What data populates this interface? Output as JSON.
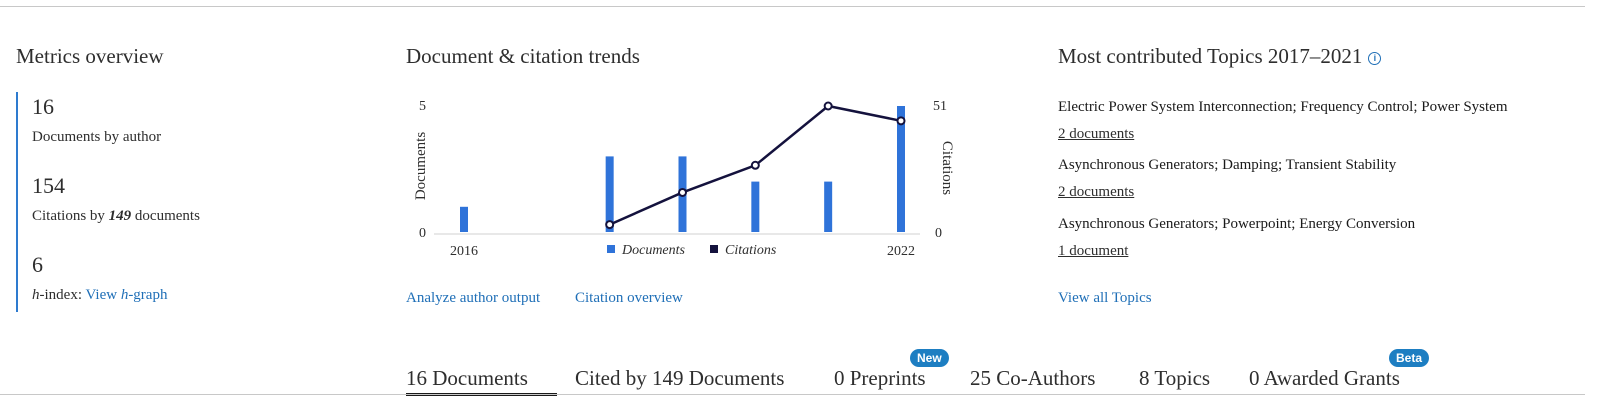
{
  "metrics": {
    "title": "Metrics overview",
    "documents": {
      "value": "16",
      "label": "Documents by author"
    },
    "citations": {
      "value": "154",
      "label_prefix": "Citations by ",
      "label_count": "149",
      "label_suffix": " documents"
    },
    "hindex": {
      "value": "6",
      "label_prefix": "h",
      "label_mid": "-index: ",
      "link_prefix": "View ",
      "link_italic": "h",
      "link_suffix": "-graph"
    }
  },
  "trends": {
    "title": "Document & citation trends",
    "analyze_link": "Analyze author output",
    "citation_link": "Citation overview"
  },
  "chart_data": {
    "type": "bar",
    "x": [
      2016,
      2017,
      2018,
      2019,
      2020,
      2021,
      2022
    ],
    "x_tick_labels": [
      "2016",
      "2022"
    ],
    "series": [
      {
        "name": "Documents",
        "type": "bar",
        "axis": "left",
        "values": [
          1,
          0,
          3,
          3,
          2,
          2,
          5
        ],
        "color": "#2f73d9"
      },
      {
        "name": "Citations",
        "type": "line",
        "axis": "right",
        "x": [
          2018,
          2019,
          2020,
          2021,
          2022
        ],
        "values": [
          3,
          16,
          27,
          51,
          45
        ],
        "color": "#14123d"
      }
    ],
    "ylabel": "Documents",
    "y2label": "Citations",
    "ylim": [
      0,
      5
    ],
    "y2lim": [
      0,
      51
    ],
    "y_tick_labels": [
      "0",
      "5"
    ],
    "y2_tick_labels": [
      "0",
      "51"
    ],
    "legend": "bottom-center",
    "grid": false
  },
  "topics": {
    "title": "Most contributed Topics 2017–2021",
    "items": [
      {
        "name": "Electric Power System Interconnection; Frequency Control; Power System",
        "docs": "2 documents"
      },
      {
        "name": "Asynchronous Generators; Damping; Transient Stability",
        "docs": "2 documents"
      },
      {
        "name": "Asynchronous Generators; Powerpoint; Energy Conversion",
        "docs": "1 document"
      }
    ],
    "view_all": "View all Topics"
  },
  "tabs": [
    {
      "label": "16 Documents",
      "active": true
    },
    {
      "label": "Cited by 149 Documents"
    },
    {
      "label": "0 Preprints",
      "badge": "New"
    },
    {
      "label": "25 Co-Authors"
    },
    {
      "label": "8 Topics"
    },
    {
      "label": "0 Awarded Grants",
      "badge": "Beta"
    }
  ],
  "colors": {
    "accent": "#1f6fb7",
    "bar": "#2f73d9",
    "line": "#14123d",
    "badge": "#1d7ec2"
  }
}
